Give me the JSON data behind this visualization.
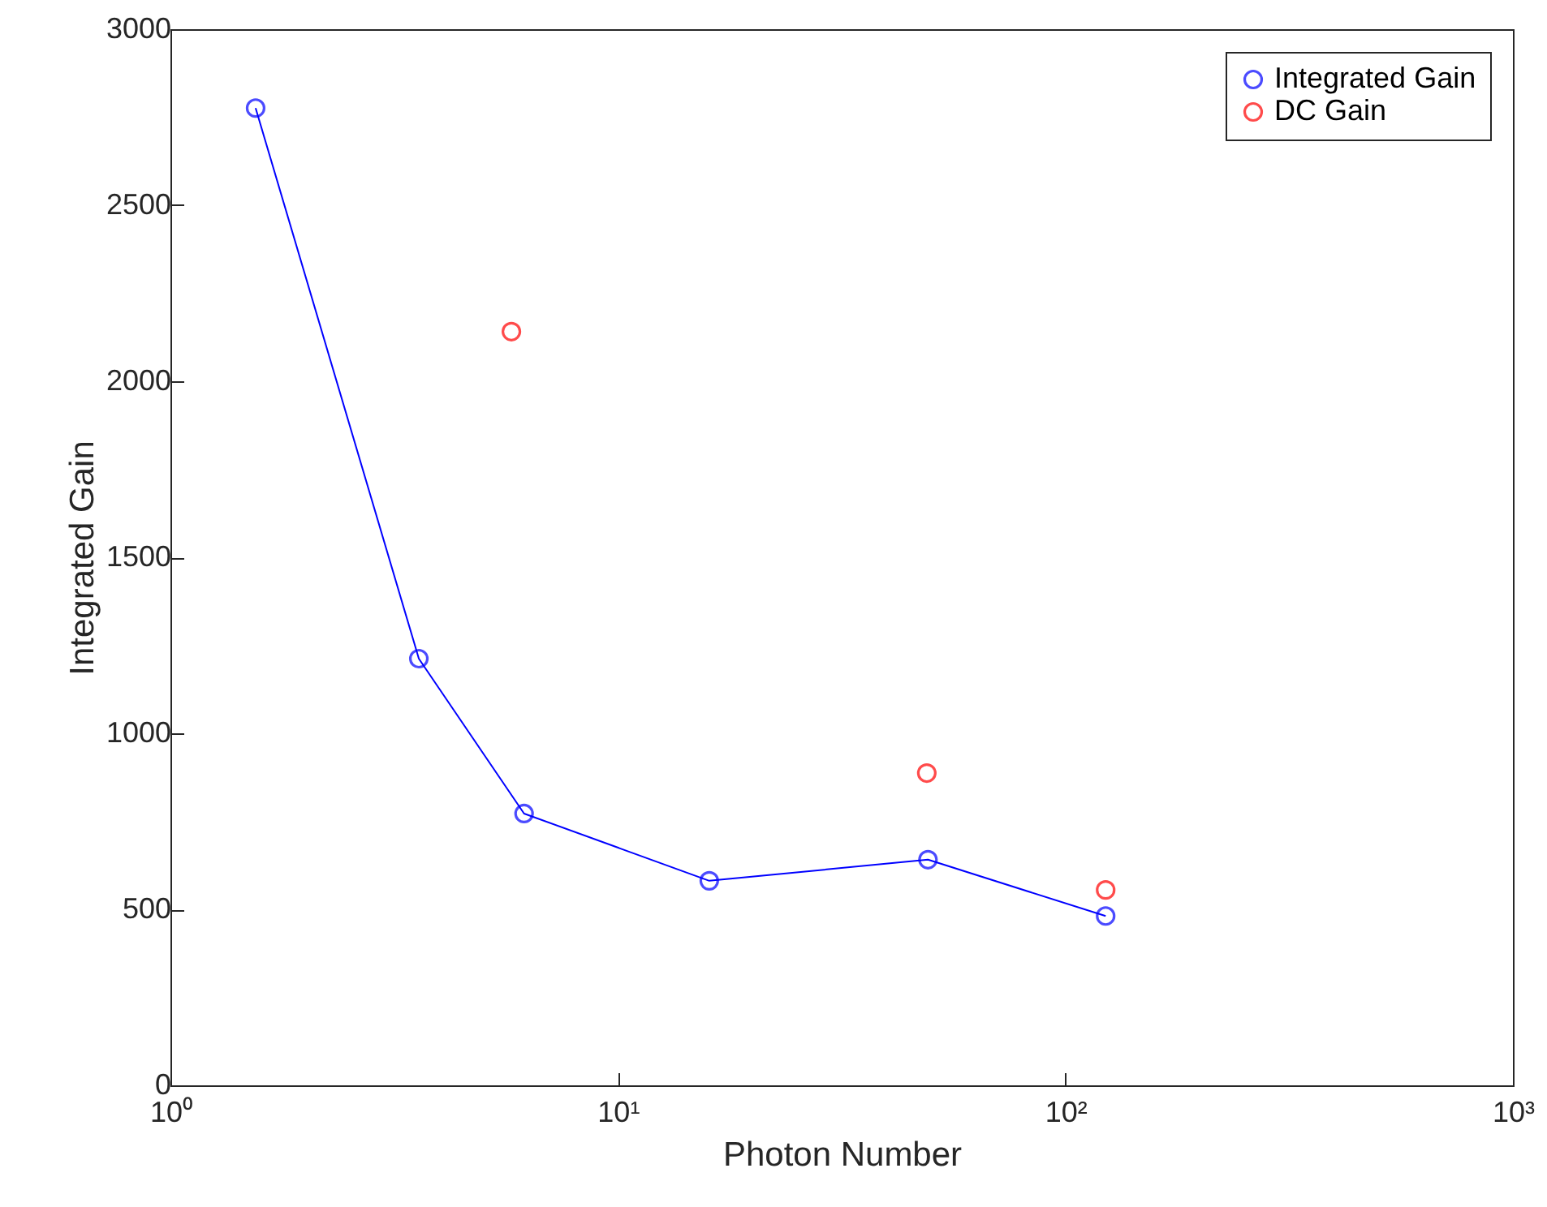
{
  "chart_data": {
    "type": "line",
    "xlabel": "Photon Number",
    "ylabel": "Integrated Gain",
    "log": "x",
    "marker": "circle",
    "line_style": "solid",
    "legend": "top right",
    "xlim": [
      1,
      1000
    ],
    "xticks": [
      {
        "value": 1,
        "label": "10⁰"
      },
      {
        "value": 10,
        "label": "10¹"
      },
      {
        "value": 100,
        "label": "10²"
      },
      {
        "value": 1000,
        "label": "10³"
      }
    ],
    "ylim": [
      0,
      3000
    ],
    "yticks": [
      0,
      500,
      1000,
      1500,
      2000,
      2500,
      3000
    ],
    "series": [
      {
        "name": "Integrated Gain",
        "color": "#0000ff",
        "x": [
          1.55,
          3.59,
          6.17,
          16,
          49.3,
          123
        ],
        "values": [
          2776,
          1212,
          772,
          581,
          641,
          481
        ]
      },
      {
        "name": "DC Gain",
        "type": "scatter",
        "color": "#ff0000",
        "x": [
          5.78,
          49,
          123
        ],
        "values": [
          2141,
          887,
          555
        ]
      }
    ]
  }
}
